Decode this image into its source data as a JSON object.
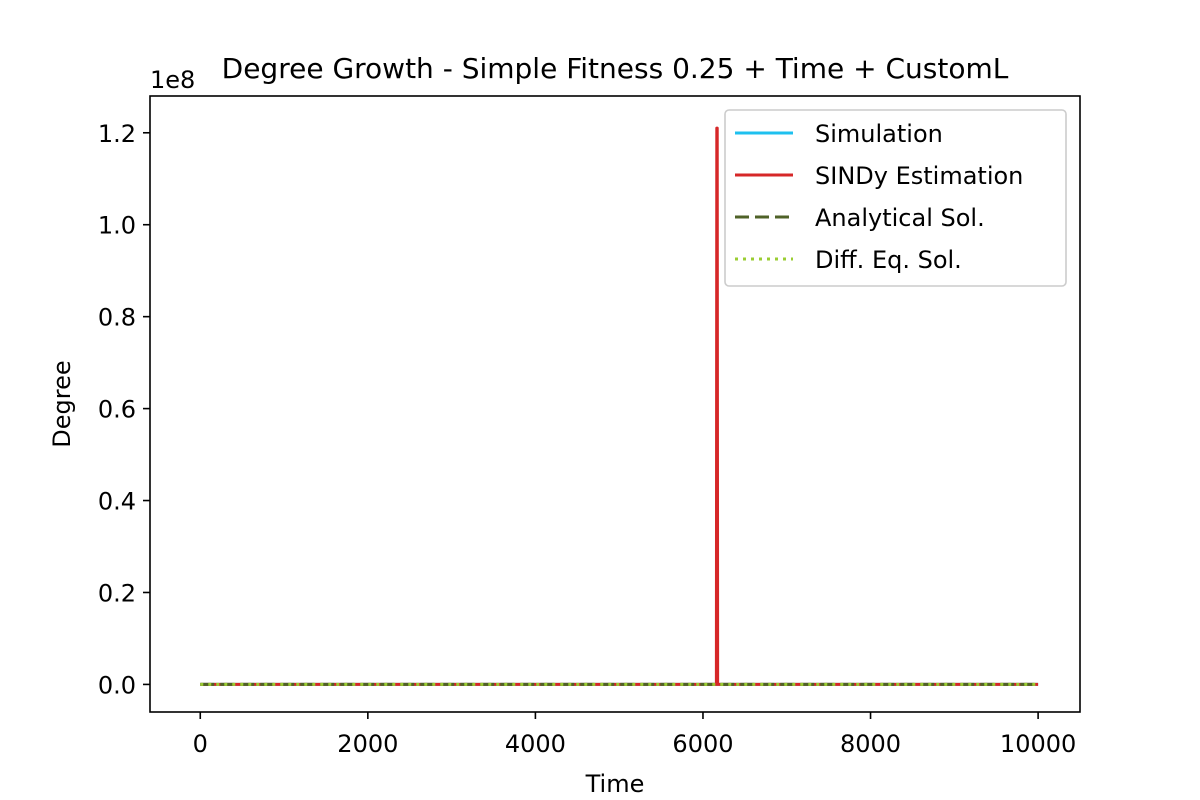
{
  "chart_data": {
    "type": "line",
    "title": "Degree Growth - Simple Fitness 0.25 + Time + CustomL",
    "xlabel": "Time",
    "ylabel": "Degree",
    "y_offset_label": "1e8",
    "xlim": [
      -600,
      10500
    ],
    "ylim": [
      -0.06,
      1.28
    ],
    "x_ticks": [
      0,
      2000,
      4000,
      6000,
      8000,
      10000
    ],
    "x_tick_labels": [
      "0",
      "2000",
      "4000",
      "6000",
      "8000",
      "10000"
    ],
    "y_ticks": [
      0.0,
      0.2,
      0.4,
      0.6,
      0.8,
      1.0,
      1.2
    ],
    "y_tick_labels": [
      "0.0",
      "0.2",
      "0.4",
      "0.6",
      "0.8",
      "1.0",
      "1.2"
    ],
    "grid": false,
    "legend_position": "top-right",
    "series": [
      {
        "name": "Simulation",
        "color": "#1ec0ef",
        "style": "solid",
        "x": [
          0,
          10000
        ],
        "y": [
          0,
          0
        ]
      },
      {
        "name": "SINDy Estimation",
        "color": "#d62728",
        "style": "solid",
        "x": [
          0,
          6160,
          6165,
          6170,
          6175,
          10000
        ],
        "y": [
          0,
          0,
          1.21,
          1.21,
          0,
          0
        ]
      },
      {
        "name": "Analytical Sol.",
        "color": "#4f6228",
        "style": "dashed",
        "x": [
          0,
          10000
        ],
        "y": [
          0,
          0
        ]
      },
      {
        "name": "Diff. Eq. Sol.",
        "color": "#9acd32",
        "style": "dotted",
        "x": [
          0,
          10000
        ],
        "y": [
          0,
          0
        ]
      }
    ]
  }
}
